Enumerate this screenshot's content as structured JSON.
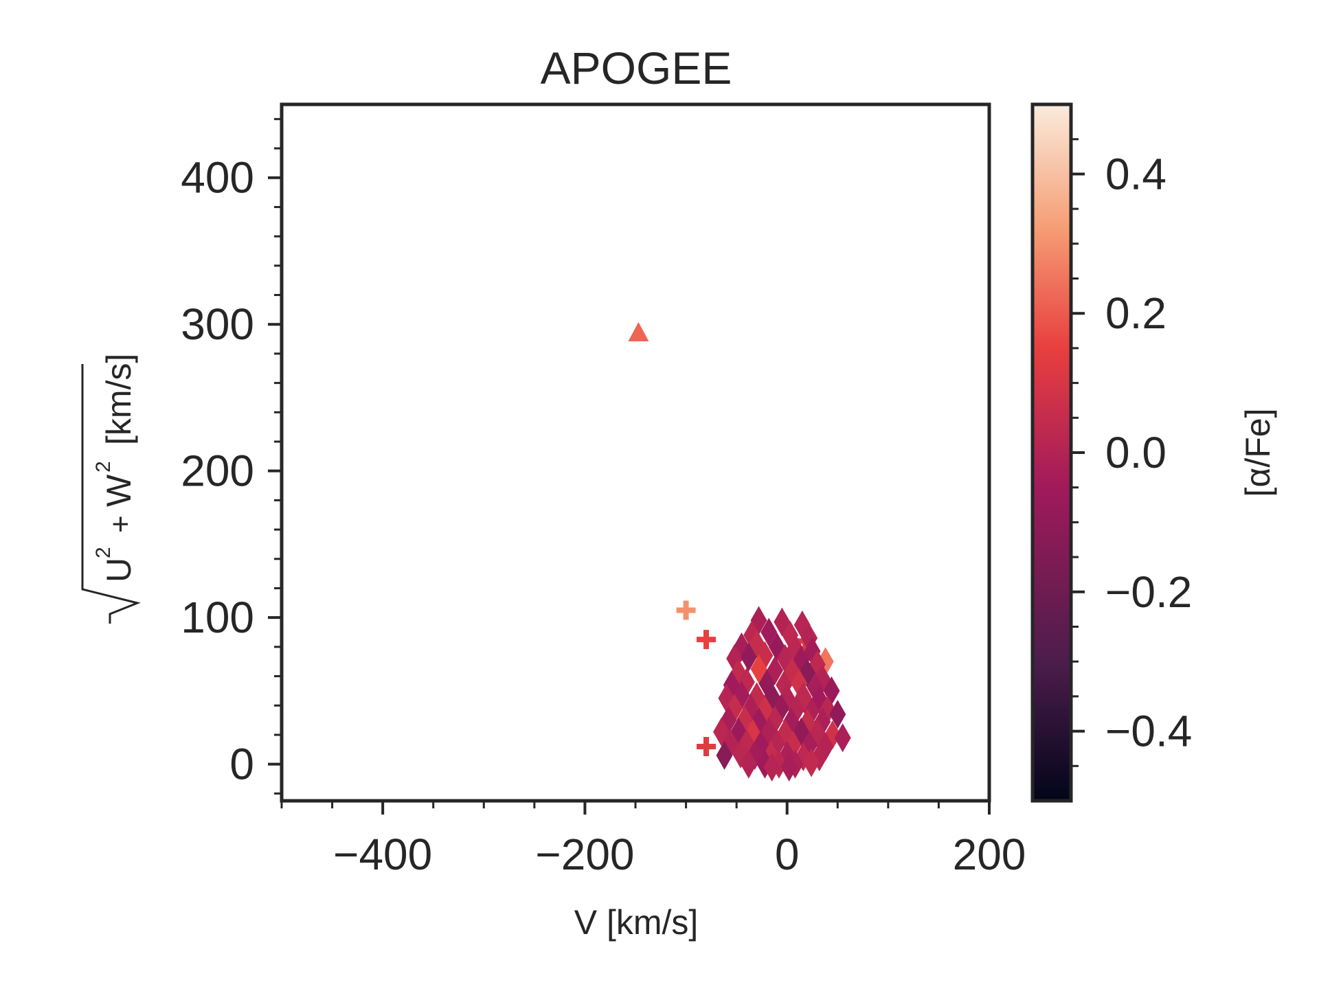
{
  "chart_data": {
    "type": "scatter",
    "title": "APOGEE",
    "xlabel": "V [km/s]",
    "ylabel": {
      "radicand": "U2 + W2",
      "unit": "[km/s]"
    },
    "xlim": [
      -500,
      200
    ],
    "ylim": [
      -25,
      450
    ],
    "xticks": [
      -400,
      -200,
      0,
      200
    ],
    "xtick_labels": [
      "−400",
      "−200",
      "0",
      "200"
    ],
    "yticks": [
      0,
      100,
      200,
      300,
      400
    ],
    "ytick_labels": [
      "0",
      "100",
      "200",
      "300",
      "400"
    ],
    "grid": false,
    "colorbar": {
      "label": "[α/Fe]",
      "range": [
        -0.5,
        0.5
      ],
      "ticks": [
        -0.4,
        -0.2,
        0.0,
        0.2,
        0.4
      ],
      "tick_labels": [
        "−0.4",
        "−0.2",
        "0.0",
        "0.2",
        "0.4"
      ],
      "colormap": "rocket",
      "colors": [
        "#03051a",
        "#4c1d4b",
        "#a11a5b",
        "#e83f3f",
        "#f69c73",
        "#faebdd"
      ]
    },
    "series": [
      {
        "marker": "triangle",
        "points": [
          {
            "x": -147,
            "y": 294,
            "alpha_fe": 0.22
          }
        ]
      },
      {
        "marker": "plus",
        "points": [
          {
            "x": -100,
            "y": 105,
            "alpha_fe": 0.3
          },
          {
            "x": -80,
            "y": 85,
            "alpha_fe": 0.15
          },
          {
            "x": -80,
            "y": 12,
            "alpha_fe": 0.13
          },
          {
            "x": 18,
            "y": 84,
            "alpha_fe": 0.12
          }
        ]
      },
      {
        "marker": "diamond",
        "points": [
          {
            "x": -28,
            "y": 98,
            "alpha_fe": -0.02
          },
          {
            "x": -5,
            "y": 97,
            "alpha_fe": 0.0
          },
          {
            "x": 15,
            "y": 95,
            "alpha_fe": 0.01
          },
          {
            "x": -35,
            "y": 88,
            "alpha_fe": 0.02
          },
          {
            "x": -18,
            "y": 90,
            "alpha_fe": -0.05
          },
          {
            "x": 3,
            "y": 88,
            "alpha_fe": 0.03
          },
          {
            "x": 22,
            "y": 86,
            "alpha_fe": 0.0
          },
          {
            "x": -45,
            "y": 80,
            "alpha_fe": -0.03
          },
          {
            "x": -30,
            "y": 82,
            "alpha_fe": 0.05
          },
          {
            "x": -10,
            "y": 80,
            "alpha_fe": -0.08
          },
          {
            "x": 8,
            "y": 79,
            "alpha_fe": 0.02
          },
          {
            "x": 25,
            "y": 77,
            "alpha_fe": -0.04
          },
          {
            "x": 38,
            "y": 70,
            "alpha_fe": 0.25
          },
          {
            "x": -52,
            "y": 72,
            "alpha_fe": 0.0
          },
          {
            "x": -38,
            "y": 73,
            "alpha_fe": -0.1
          },
          {
            "x": -22,
            "y": 74,
            "alpha_fe": 0.06
          },
          {
            "x": -2,
            "y": 72,
            "alpha_fe": 0.01
          },
          {
            "x": 14,
            "y": 71,
            "alpha_fe": -0.06
          },
          {
            "x": 30,
            "y": 68,
            "alpha_fe": 0.03
          },
          {
            "x": -48,
            "y": 62,
            "alpha_fe": 0.04
          },
          {
            "x": -28,
            "y": 65,
            "alpha_fe": 0.15
          },
          {
            "x": -12,
            "y": 64,
            "alpha_fe": -0.02
          },
          {
            "x": 5,
            "y": 63,
            "alpha_fe": 0.05
          },
          {
            "x": 20,
            "y": 62,
            "alpha_fe": -0.12
          },
          {
            "x": 35,
            "y": 58,
            "alpha_fe": 0.0
          },
          {
            "x": -55,
            "y": 54,
            "alpha_fe": -0.05
          },
          {
            "x": -40,
            "y": 56,
            "alpha_fe": 0.03
          },
          {
            "x": -20,
            "y": 55,
            "alpha_fe": -0.09
          },
          {
            "x": -3,
            "y": 54,
            "alpha_fe": 0.02
          },
          {
            "x": 12,
            "y": 55,
            "alpha_fe": 0.08
          },
          {
            "x": 28,
            "y": 52,
            "alpha_fe": -0.03
          },
          {
            "x": 44,
            "y": 50,
            "alpha_fe": -0.07
          },
          {
            "x": -60,
            "y": 45,
            "alpha_fe": 0.01
          },
          {
            "x": -45,
            "y": 47,
            "alpha_fe": -0.04
          },
          {
            "x": -30,
            "y": 46,
            "alpha_fe": 0.04
          },
          {
            "x": -15,
            "y": 46,
            "alpha_fe": -0.11
          },
          {
            "x": 0,
            "y": 45,
            "alpha_fe": 0.0
          },
          {
            "x": 16,
            "y": 46,
            "alpha_fe": 0.03
          },
          {
            "x": 32,
            "y": 44,
            "alpha_fe": -0.05
          },
          {
            "x": -52,
            "y": 38,
            "alpha_fe": 0.05
          },
          {
            "x": -36,
            "y": 38,
            "alpha_fe": -0.02
          },
          {
            "x": -22,
            "y": 37,
            "alpha_fe": 0.07
          },
          {
            "x": -6,
            "y": 38,
            "alpha_fe": -0.08
          },
          {
            "x": 9,
            "y": 37,
            "alpha_fe": 0.01
          },
          {
            "x": 24,
            "y": 36,
            "alpha_fe": -0.01
          },
          {
            "x": 40,
            "y": 37,
            "alpha_fe": 0.02
          },
          {
            "x": 50,
            "y": 34,
            "alpha_fe": -0.1
          },
          {
            "x": -58,
            "y": 30,
            "alpha_fe": -0.03
          },
          {
            "x": -42,
            "y": 30,
            "alpha_fe": 0.06
          },
          {
            "x": -28,
            "y": 29,
            "alpha_fe": -0.06
          },
          {
            "x": -12,
            "y": 30,
            "alpha_fe": 0.02
          },
          {
            "x": 4,
            "y": 29,
            "alpha_fe": -0.04
          },
          {
            "x": 20,
            "y": 28,
            "alpha_fe": 0.05
          },
          {
            "x": 35,
            "y": 29,
            "alpha_fe": -0.02
          },
          {
            "x": -65,
            "y": 22,
            "alpha_fe": 0.02
          },
          {
            "x": -48,
            "y": 22,
            "alpha_fe": -0.07
          },
          {
            "x": -34,
            "y": 21,
            "alpha_fe": 0.1
          },
          {
            "x": -18,
            "y": 22,
            "alpha_fe": -0.01
          },
          {
            "x": -2,
            "y": 21,
            "alpha_fe": 0.04
          },
          {
            "x": 14,
            "y": 22,
            "alpha_fe": -0.09
          },
          {
            "x": 30,
            "y": 21,
            "alpha_fe": 0.02
          },
          {
            "x": 45,
            "y": 20,
            "alpha_fe": 0.08
          },
          {
            "x": 55,
            "y": 18,
            "alpha_fe": -0.02
          },
          {
            "x": -56,
            "y": 14,
            "alpha_fe": 0.0
          },
          {
            "x": -40,
            "y": 14,
            "alpha_fe": 0.03
          },
          {
            "x": -26,
            "y": 13,
            "alpha_fe": -0.05
          },
          {
            "x": -10,
            "y": 14,
            "alpha_fe": 0.01
          },
          {
            "x": 6,
            "y": 13,
            "alpha_fe": 0.06
          },
          {
            "x": 22,
            "y": 13,
            "alpha_fe": -0.03
          },
          {
            "x": 38,
            "y": 12,
            "alpha_fe": 0.0
          },
          {
            "x": -62,
            "y": 6,
            "alpha_fe": -0.12
          },
          {
            "x": -46,
            "y": 7,
            "alpha_fe": 0.02
          },
          {
            "x": -32,
            "y": 6,
            "alpha_fe": -0.04
          },
          {
            "x": -16,
            "y": 6,
            "alpha_fe": 0.05
          },
          {
            "x": 0,
            "y": 6,
            "alpha_fe": -0.02
          },
          {
            "x": 16,
            "y": 5,
            "alpha_fe": 0.03
          },
          {
            "x": 32,
            "y": 5,
            "alpha_fe": 0.01
          },
          {
            "x": -38,
            "y": 0,
            "alpha_fe": 0.0
          },
          {
            "x": -22,
            "y": 0,
            "alpha_fe": -0.06
          },
          {
            "x": -8,
            "y": 0,
            "alpha_fe": 0.02
          },
          {
            "x": 8,
            "y": 0,
            "alpha_fe": -0.01
          },
          {
            "x": 24,
            "y": 1,
            "alpha_fe": 0.04
          },
          {
            "x": -15,
            "y": -2,
            "alpha_fe": 0.01
          },
          {
            "x": 2,
            "y": -2,
            "alpha_fe": -0.03
          }
        ]
      }
    ]
  }
}
